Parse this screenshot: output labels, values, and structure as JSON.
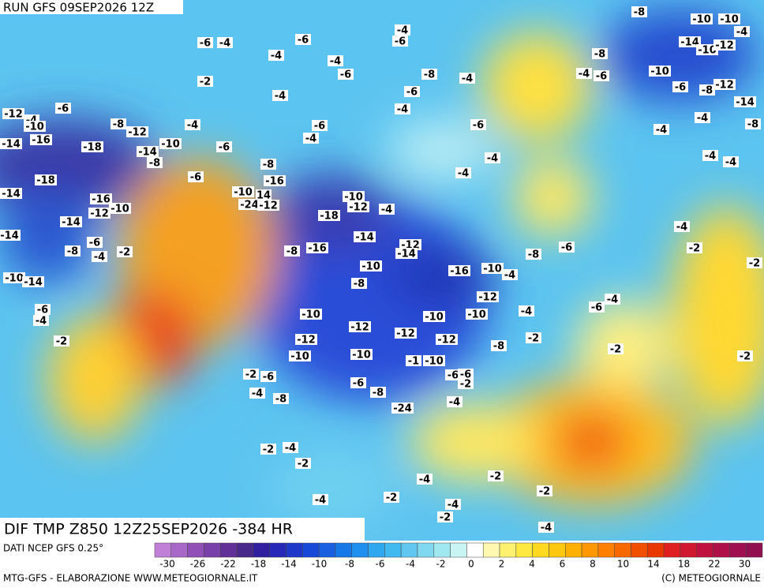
{
  "header": {
    "run": "RUN GFS 09SEP2026 12Z"
  },
  "map": {
    "labels": [
      "-8",
      "-10",
      "-10",
      "-6",
      "-4",
      "-6",
      "-4",
      "-6",
      "-4",
      "-4",
      "-6",
      "-8",
      "-4",
      "-8",
      "-4",
      "-6",
      "-10",
      "-14",
      "-10",
      "-12",
      "-4",
      "-2",
      "-4",
      "-6",
      "-4",
      "-6",
      "-6",
      "-8",
      "-12",
      "-14",
      "-4",
      "-4",
      "-8",
      "-6",
      "-12",
      "-4",
      "-10",
      "-8",
      "-12",
      "-4",
      "-6",
      "-4",
      "-14",
      "-16",
      "-18",
      "-14",
      "-10",
      "-8",
      "-6",
      "-8",
      "-4",
      "-4",
      "-4",
      "-4",
      "-18",
      "-6",
      "-16",
      "-14",
      "-10",
      "14",
      "-24",
      "-12",
      "-16",
      "-12",
      "-10",
      "-10",
      "-12",
      "-4",
      "-18",
      "-14",
      "-4",
      "-14",
      "-14",
      "-6",
      "-8",
      "-4",
      "-2",
      "-16",
      "-8",
      "-12",
      "-14",
      "-8",
      "-6",
      "-2",
      "-10",
      "-16",
      "-10",
      "-4",
      "-2",
      "-10",
      "-14",
      "-8",
      "-12",
      "-4",
      "-6",
      "-6",
      "-4",
      "-10",
      "-10",
      "-10",
      "-4",
      "-12",
      "-12",
      "-12",
      "-12",
      "-2",
      "-8",
      "-2",
      "-2",
      "-2",
      "-10",
      "-10",
      "-1",
      "-10",
      "-2",
      "-6",
      "-6",
      "-6",
      "-2",
      "-6",
      "-4",
      "-8",
      "-8",
      "-4",
      "-24",
      "-2",
      "-4",
      "-2",
      "-4",
      "-2",
      "-2",
      "-2",
      "-4",
      "-4",
      "-2",
      "-4"
    ]
  },
  "footer": {
    "banner": "DIF TMP Z850 12Z25SEP2026 -384 HR",
    "data_source": "DATI NCEP GFS 0.25°",
    "credit": "MTG-GFS - ELABORAZIONE WWW.METEOGIORNALE.IT",
    "copyright": "(C) METEOGIORNALE"
  },
  "colorbar": {
    "colors": [
      "#c080d8",
      "#a868c8",
      "#9050b8",
      "#7840a8",
      "#603098",
      "#482888",
      "#3020a0",
      "#2828b8",
      "#2038c8",
      "#1848d8",
      "#1860e0",
      "#1878e8",
      "#2090f0",
      "#30a8f0",
      "#40b8f0",
      "#60c8f0",
      "#80d8f0",
      "#a0e8f0",
      "#c8f4f4",
      "#ffffff",
      "#fff8b0",
      "#fff070",
      "#ffe840",
      "#ffd820",
      "#ffc810",
      "#ffb000",
      "#ff9800",
      "#ff8000",
      "#f86800",
      "#f05000",
      "#e83800",
      "#e02020",
      "#d01830",
      "#c01040",
      "#b01048",
      "#a01050",
      "#901050"
    ],
    "ticks": [
      -30,
      -26,
      -22,
      -18,
      -14,
      -10,
      -8,
      -6,
      -4,
      -2,
      0,
      2,
      4,
      6,
      8,
      10,
      14,
      18,
      22,
      30
    ]
  }
}
